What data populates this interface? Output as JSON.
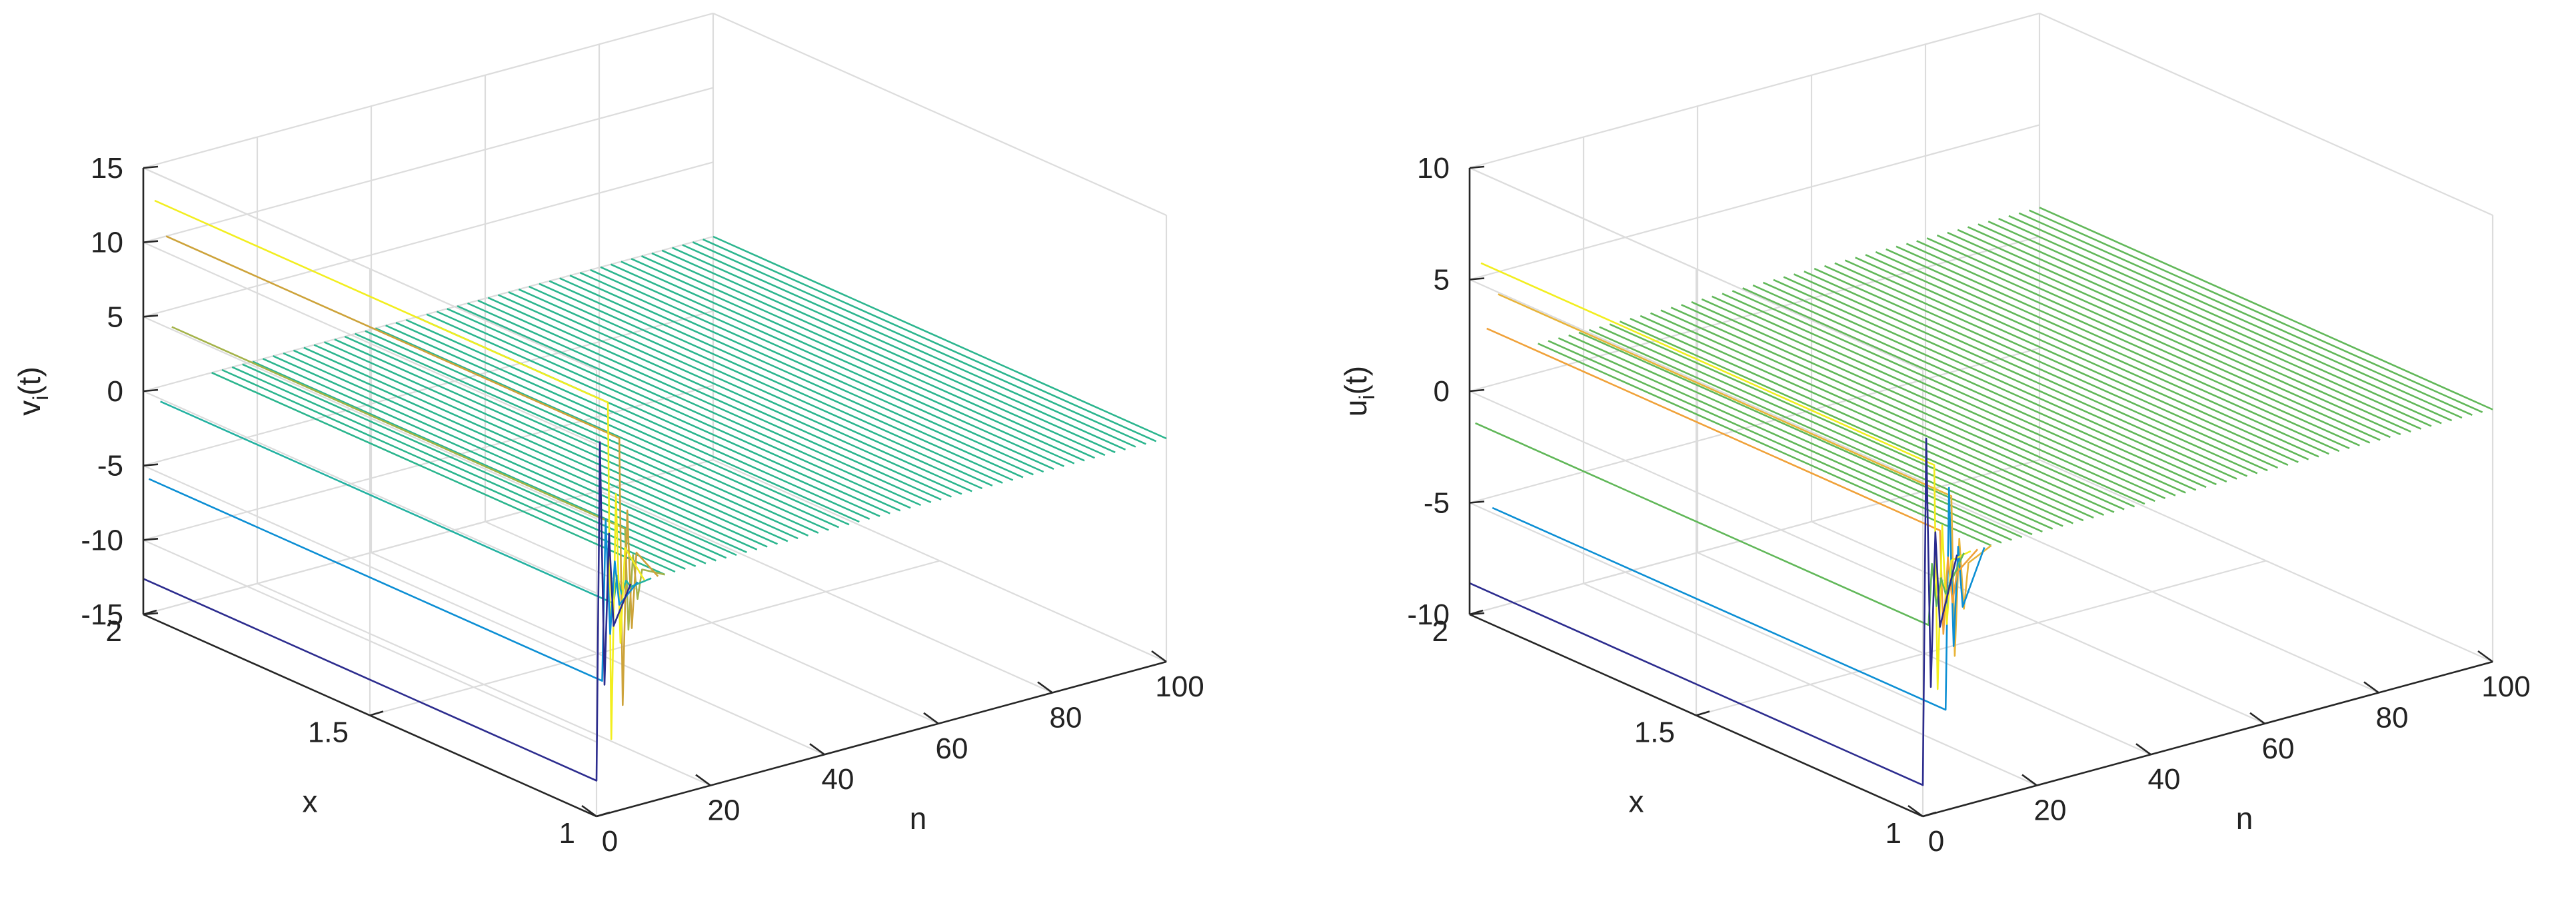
{
  "chart_data": [
    {
      "type": "line",
      "variant": "3d-waterfall",
      "title": "",
      "xlabel": "n",
      "ylabel": "x",
      "zlabel_main": "v",
      "zlabel_sub": "i",
      "zlabel_tail": "(t)",
      "n_range": [
        0,
        100
      ],
      "x_range": [
        1,
        2
      ],
      "z_range": [
        -15,
        15
      ],
      "n_ticks": [
        0,
        20,
        40,
        60,
        80,
        100
      ],
      "x_ticks": [
        1,
        1.5,
        2
      ],
      "x_tick_labels": [
        "1",
        "1.5",
        "2"
      ],
      "z_ticks": [
        -15,
        -10,
        -5,
        0,
        5,
        10,
        15
      ],
      "grid": true,
      "colormap": "parula",
      "transient_end_n": 12,
      "steady_value": 0,
      "steady_color": "#2db68f",
      "initial_profiles": [
        {
          "n": 0,
          "z": -12.6,
          "color": "#2c2c8e"
        },
        {
          "n": 1,
          "z": -6.0,
          "color": "#0d8fd4"
        },
        {
          "n": 2,
          "z": 12.6,
          "color": "#f2ee1f"
        },
        {
          "n": 3,
          "z": -1.0,
          "color": "#25b2a2"
        },
        {
          "n": 4,
          "z": 10.0,
          "color": "#cda33a"
        },
        {
          "n": 5,
          "z": 3.8,
          "color": "#a4b34a"
        }
      ]
    },
    {
      "type": "line",
      "variant": "3d-waterfall",
      "title": "",
      "xlabel": "n",
      "ylabel": "x",
      "zlabel_main": "u",
      "zlabel_sub": "i",
      "zlabel_tail": "(t)",
      "n_range": [
        0,
        100
      ],
      "x_range": [
        1,
        2
      ],
      "z_range": [
        -10,
        10
      ],
      "n_ticks": [
        0,
        20,
        40,
        60,
        80,
        100
      ],
      "x_ticks": [
        1,
        1.5,
        2
      ],
      "x_tick_labels": [
        "1",
        "1.5",
        "2"
      ],
      "z_ticks": [
        -10,
        -5,
        0,
        5,
        10
      ],
      "grid": true,
      "colormap": "parula",
      "transient_end_n": 12,
      "steady_value": 1.3,
      "steady_color": "#62b85a",
      "initial_profiles": [
        {
          "n": 0,
          "z": -8.6,
          "color": "#2c2c8e"
        },
        {
          "n": 1,
          "z": -1.5,
          "color": "#62b85a"
        },
        {
          "n": 2,
          "z": 5.6,
          "color": "#f2ee1f"
        },
        {
          "n": 3,
          "z": 2.6,
          "color": "#f0a23a"
        },
        {
          "n": 4,
          "z": -5.5,
          "color": "#0d8fd4"
        },
        {
          "n": 5,
          "z": 4.0,
          "color": "#e8b43a"
        }
      ]
    }
  ]
}
